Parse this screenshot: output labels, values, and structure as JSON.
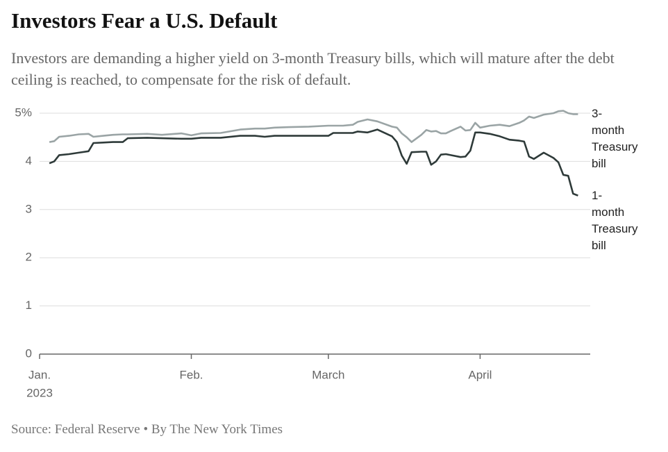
{
  "chart_data": {
    "type": "line",
    "title": "Investors Fear a U.S. Default",
    "subtitle": "Investors are demanding a higher yield on 3-month Treasury bills, which will mature after the debt ceiling is reached, to compensate for the risk of default.",
    "source": "Source: Federal Reserve • By The New York Times",
    "x": [
      2,
      3,
      4,
      6,
      8,
      10,
      11,
      13,
      15,
      17,
      18,
      22,
      25,
      29,
      31,
      33,
      37,
      41,
      44,
      46,
      48,
      51,
      55,
      59,
      60,
      62,
      64,
      65,
      67,
      69,
      72,
      73,
      74,
      75,
      76,
      78,
      79,
      80,
      81,
      82,
      83,
      84,
      86,
      87,
      88,
      89,
      90,
      92,
      94,
      96,
      98,
      99,
      100,
      101,
      103,
      105,
      106,
      107,
      108,
      109,
      110
    ],
    "xlim": [
      0,
      112.5
    ],
    "xticks": [
      {
        "value": 0,
        "label": "Jan."
      },
      {
        "value": 31,
        "label": "Feb."
      },
      {
        "value": 59,
        "label": "March"
      },
      {
        "value": 90,
        "label": "April"
      }
    ],
    "xtick_sublabel": "2023",
    "ylim": [
      0,
      5
    ],
    "yticks": [
      0,
      1,
      2,
      3,
      4,
      {
        "value": 5,
        "label": "5%"
      }
    ],
    "grid": true,
    "series": [
      {
        "name": "3-month Treasury bill",
        "color": "#9aa4a5",
        "values": [
          4.4,
          4.42,
          4.51,
          4.53,
          4.56,
          4.57,
          4.51,
          4.53,
          4.55,
          4.56,
          4.56,
          4.57,
          4.55,
          4.58,
          4.54,
          4.58,
          4.59,
          4.66,
          4.68,
          4.68,
          4.7,
          4.71,
          4.72,
          4.74,
          4.74,
          4.74,
          4.76,
          4.82,
          4.87,
          4.83,
          4.72,
          4.7,
          4.58,
          4.5,
          4.4,
          4.55,
          4.65,
          4.62,
          4.63,
          4.58,
          4.58,
          4.63,
          4.72,
          4.64,
          4.65,
          4.8,
          4.7,
          4.74,
          4.76,
          4.73,
          4.8,
          4.85,
          4.93,
          4.9,
          4.97,
          5.0,
          5.04,
          5.05,
          5.0,
          4.98,
          4.98
        ]
      },
      {
        "name": "1-month Treasury bill",
        "color": "#2e3a39",
        "values": [
          3.96,
          4.0,
          4.13,
          4.15,
          4.18,
          4.21,
          4.38,
          4.39,
          4.4,
          4.4,
          4.48,
          4.49,
          4.48,
          4.47,
          4.47,
          4.49,
          4.49,
          4.53,
          4.53,
          4.51,
          4.53,
          4.53,
          4.53,
          4.53,
          4.59,
          4.59,
          4.59,
          4.62,
          4.6,
          4.66,
          4.52,
          4.4,
          4.12,
          3.95,
          4.19,
          4.2,
          4.2,
          3.93,
          4.0,
          4.14,
          4.15,
          4.13,
          4.09,
          4.1,
          4.22,
          4.6,
          4.6,
          4.57,
          4.52,
          4.45,
          4.43,
          4.41,
          4.1,
          4.05,
          4.18,
          4.07,
          3.98,
          3.72,
          3.7,
          3.33,
          3.29
        ]
      }
    ]
  }
}
